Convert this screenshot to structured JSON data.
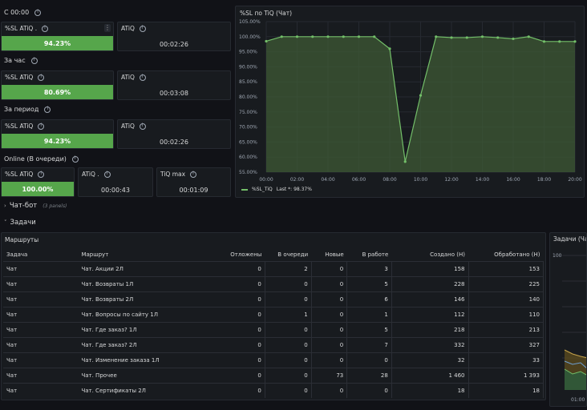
{
  "sections": {
    "s1": "С 00:00",
    "s2": "За час",
    "s3": "За период",
    "s4": "Online (В очереди)"
  },
  "stats": {
    "r1": {
      "sl_title": "%SL ATiQ .",
      "sl_value": "94.23%",
      "atiq_title": "ATiQ",
      "atiq_value": "00:02:26"
    },
    "r2": {
      "sl_title": "%SL ATiQ",
      "sl_value": "80.69%",
      "atiq_title": "ATiQ",
      "atiq_value": "00:03:08"
    },
    "r3": {
      "sl_title": "%SL ATiQ",
      "sl_value": "94.23%",
      "atiq_title": "ATiQ",
      "atiq_value": "00:02:26"
    },
    "r4": {
      "sl_title": "%SL ATiQ",
      "sl_value": "100.00%",
      "atiq_title": "ATiQ .",
      "atiq_value": "00:00:43",
      "max_title": "TiQ max",
      "max_value": "00:01:09"
    }
  },
  "chart_panel": {
    "title": "%SL по TiQ (Чат)",
    "legend": "%SL_TiQ",
    "legend_last": "Last *: 98.37%"
  },
  "chart_data": {
    "type": "line",
    "title": "%SL по TiQ (Чат)",
    "x_ticks": [
      "00:00",
      "02:00",
      "04:00",
      "06:00",
      "08:00",
      "10:00",
      "12:00",
      "14:00",
      "16:00",
      "18:00",
      "20:00"
    ],
    "y_ticks": [
      "105.00%",
      "100.00%",
      "95.00%",
      "90.00%",
      "85.00%",
      "80.00%",
      "75.00%",
      "70.00%",
      "65.00%",
      "60.00%",
      "55.00%"
    ],
    "ylim": [
      55,
      105
    ],
    "xlim": [
      0,
      20
    ],
    "grid": true,
    "legend_position": "bottom-left",
    "color": "#73bf69",
    "series": [
      {
        "name": "%SL_TiQ",
        "x": [
          0,
          1,
          2,
          3,
          4,
          5,
          6,
          7,
          8,
          9,
          10,
          11,
          12,
          13,
          14,
          15,
          16,
          17,
          18,
          19,
          20
        ],
        "y": [
          98.5,
          100,
          100,
          100,
          100,
          100,
          100,
          100,
          96,
          58.5,
          80.5,
          100,
          99.7,
          99.7,
          100,
          99.7,
          99.3,
          100,
          98.4,
          98.4,
          98.4
        ]
      }
    ]
  },
  "groups": {
    "chatbot": "Чат-бот",
    "chatbot_count": "(3 panels)",
    "tasks": "Задачи"
  },
  "routes": {
    "title": "Маршруты",
    "columns": [
      "Задача",
      "Маршрут",
      "Отложены",
      "В очереди",
      "Новые",
      "В работе",
      "Создано (Н)",
      "Обработано (Н)"
    ],
    "rows": [
      [
        "Чат",
        "Чат. Акции 2Л",
        "0",
        "2",
        "0",
        "3",
        "158",
        "153"
      ],
      [
        "Чат",
        "Чат. Возвраты 1Л",
        "0",
        "0",
        "0",
        "5",
        "228",
        "225"
      ],
      [
        "Чат",
        "Чат. Возвраты 2Л",
        "0",
        "0",
        "0",
        "6",
        "146",
        "140"
      ],
      [
        "Чат",
        "Чат. Вопросы по сайту 1Л",
        "0",
        "1",
        "0",
        "1",
        "112",
        "110"
      ],
      [
        "Чат",
        "Чат. Где заказ? 1Л",
        "0",
        "0",
        "0",
        "5",
        "218",
        "213"
      ],
      [
        "Чат",
        "Чат. Где заказ? 2Л",
        "0",
        "0",
        "0",
        "7",
        "332",
        "327"
      ],
      [
        "Чат",
        "Чат. Изменение заказа 1Л",
        "0",
        "0",
        "0",
        "0",
        "32",
        "33"
      ],
      [
        "Чат",
        "Чат. Прочее",
        "0",
        "0",
        "73",
        "28",
        "1 460",
        "1 393"
      ],
      [
        "Чат",
        "Чат. Сертификаты 2Л",
        "0",
        "0",
        "0",
        "0",
        "18",
        "18"
      ]
    ]
  },
  "tasks_chart": {
    "title": "Задачи (Чат",
    "y_top": "100",
    "x_first": "01:00"
  }
}
